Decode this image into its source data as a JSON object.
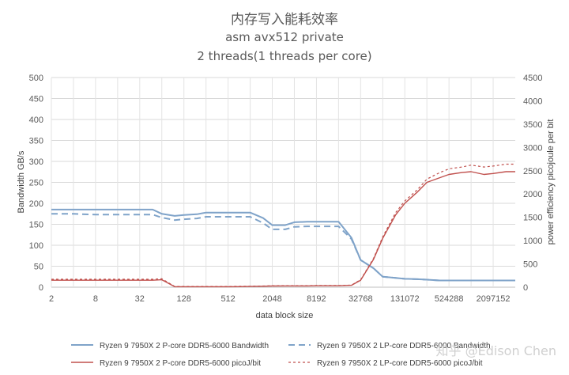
{
  "chart_data": {
    "type": "line",
    "title": "内存写入能耗效率",
    "subtitle1": "asm avx512 private",
    "subtitle2": "2 threads(1 threads per core)",
    "xlabel": "data block size",
    "ylabel_left": "Bandwidth GB/s",
    "ylabel_right": "power efficiency picojoule per bit",
    "x_tick_labels": [
      "2",
      "8",
      "32",
      "128",
      "512",
      "2048",
      "8192",
      "32768",
      "131072",
      "524288",
      "2097152"
    ],
    "left_ticks": [
      "0",
      "50",
      "100",
      "150",
      "200",
      "250",
      "300",
      "350",
      "400",
      "450",
      "500"
    ],
    "right_ticks": [
      "0",
      "500",
      "1000",
      "1500",
      "2000",
      "2500",
      "3000",
      "3500",
      "4000",
      "4500"
    ],
    "ylim_left": [
      0,
      500
    ],
    "ylim_right": [
      0,
      4500
    ],
    "x_scale": "log2",
    "x": [
      2,
      4,
      8,
      16,
      32,
      48,
      64,
      96,
      128,
      192,
      256,
      384,
      512,
      768,
      1024,
      1536,
      2048,
      3072,
      4096,
      6144,
      8192,
      12288,
      16384,
      24576,
      32768,
      49152,
      65536,
      98304,
      131072,
      196608,
      262144,
      393216,
      524288,
      786432,
      1048576,
      1572864,
      2097152,
      3145728,
      4194304
    ],
    "series": [
      {
        "name": "Ryzen 9 7950X 2 P-core DDR5-6000 Bandwidth",
        "axis": "left",
        "color": "#7fa3c9",
        "dash": "none",
        "width": 2,
        "values": [
          185,
          185,
          185,
          185,
          185,
          185,
          175,
          170,
          172,
          174,
          178,
          178,
          178,
          178,
          178,
          165,
          148,
          148,
          155,
          156,
          156,
          156,
          156,
          118,
          65,
          45,
          25,
          22,
          20,
          19,
          18,
          16,
          16,
          16,
          16,
          16,
          16,
          16,
          16
        ]
      },
      {
        "name": "Ryzen 9 7950X 2 LP-core DDR5-6000 Bandwidth",
        "axis": "left",
        "color": "#7fa3c9",
        "dash": "8,5",
        "width": 2,
        "values": [
          175,
          175,
          173,
          173,
          173,
          173,
          166,
          160,
          162,
          164,
          168,
          168,
          168,
          168,
          168,
          153,
          138,
          138,
          144,
          145,
          145,
          145,
          145,
          115,
          65,
          45,
          25,
          22,
          20,
          19,
          18,
          16,
          16,
          16,
          16,
          16,
          16,
          16,
          16
        ]
      },
      {
        "name": "Ryzen 9 7950X 2 P-core DDR5-6000 picoJ/bit",
        "axis": "right",
        "color": "#c0504d",
        "dash": "none",
        "width": 1.4,
        "values": [
          150,
          150,
          150,
          150,
          150,
          150,
          160,
          10,
          10,
          10,
          10,
          10,
          10,
          12,
          15,
          20,
          25,
          28,
          28,
          28,
          30,
          30,
          30,
          40,
          150,
          600,
          1050,
          1550,
          1800,
          2050,
          2250,
          2350,
          2420,
          2460,
          2480,
          2420,
          2440,
          2480,
          2480
        ]
      },
      {
        "name": "Ryzen 9 7950X 2 LP-core DDR5-6000 picoJ/bit",
        "axis": "right",
        "color": "#c0504d",
        "dash": "3,3",
        "width": 1.2,
        "values": [
          170,
          170,
          170,
          170,
          170,
          170,
          180,
          15,
          15,
          15,
          15,
          15,
          15,
          18,
          20,
          25,
          30,
          32,
          32,
          32,
          35,
          35,
          35,
          45,
          160,
          620,
          1080,
          1600,
          1850,
          2100,
          2320,
          2460,
          2540,
          2580,
          2620,
          2580,
          2600,
          2640,
          2640
        ]
      }
    ],
    "grid": true,
    "legend_position": "bottom"
  },
  "watermark": "知乎 @Edison Chen"
}
